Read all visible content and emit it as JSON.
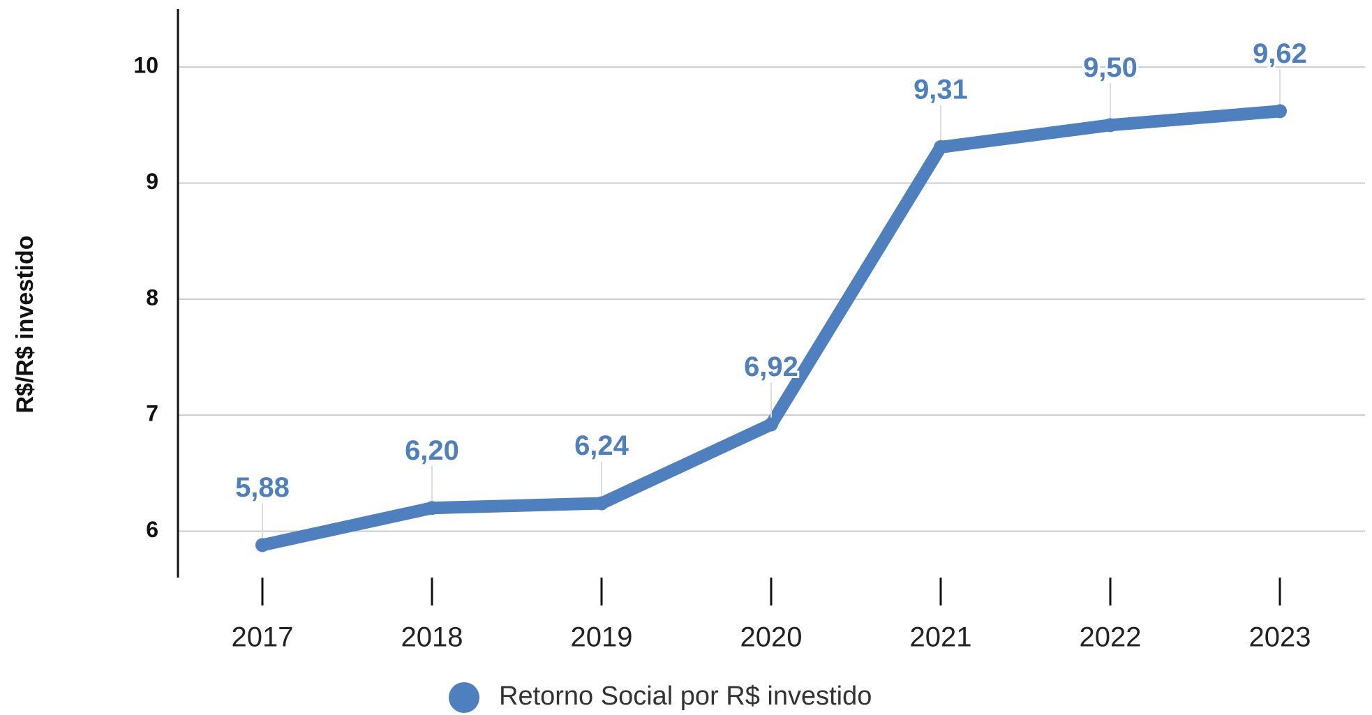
{
  "chart_data": {
    "type": "line",
    "y_axis_label": "R$/R$ investido",
    "categories": [
      "2017",
      "2018",
      "2019",
      "2020",
      "2021",
      "2022",
      "2023"
    ],
    "series": [
      {
        "name": "Retorno Social por R$ investido",
        "color": "#4e7fbf",
        "values": [
          5.88,
          6.2,
          6.24,
          6.92,
          9.31,
          9.5,
          9.62
        ],
        "value_labels": [
          "5,88",
          "6,20",
          "6,24",
          "6,92",
          "9,31",
          "9,50",
          "9,62"
        ]
      }
    ],
    "ylim": [
      5.6,
      10.5
    ],
    "yticks": [
      6,
      7,
      8,
      9,
      10
    ],
    "grid": true,
    "legend": "bottom"
  }
}
